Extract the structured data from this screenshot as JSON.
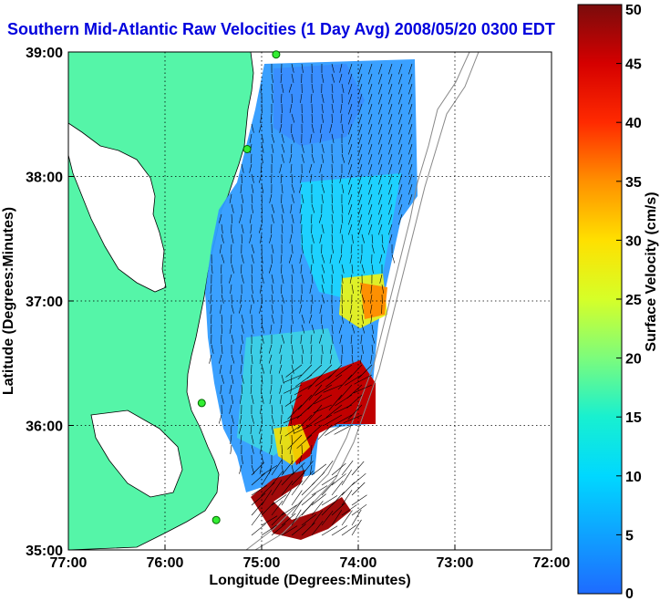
{
  "title": "Southern Mid-Atlantic Raw Velocities (1 Day Avg) 2008/05/20 0300 EDT",
  "colors": {
    "land": "#55f5a8",
    "title": "#0000dd",
    "grid": "#000000"
  },
  "axes": {
    "xlabel": "Longitude (Degrees:Minutes)",
    "ylabel": "Latitude (Degrees:Minutes)",
    "xlim": [
      -77,
      -72
    ],
    "ylim": [
      35,
      39
    ],
    "x_ticks": [
      "77:00",
      "76:00",
      "75:00",
      "74:00",
      "73:00",
      "72:00"
    ],
    "y_ticks": [
      "39:00",
      "38:00",
      "37:00",
      "36:00",
      "35:00"
    ]
  },
  "colorbar": {
    "label": "Surface Velocity (cm/s)",
    "min": 0,
    "max": 50,
    "ticks": [
      "0",
      "5",
      "10",
      "15",
      "20",
      "25",
      "30",
      "35",
      "40",
      "45",
      "50"
    ]
  },
  "stations": [
    {
      "lon": -74.85,
      "lat": 38.98
    },
    {
      "lon": -75.15,
      "lat": 38.22
    },
    {
      "lon": -75.62,
      "lat": 36.18
    },
    {
      "lon": -75.47,
      "lat": 35.24
    }
  ]
}
